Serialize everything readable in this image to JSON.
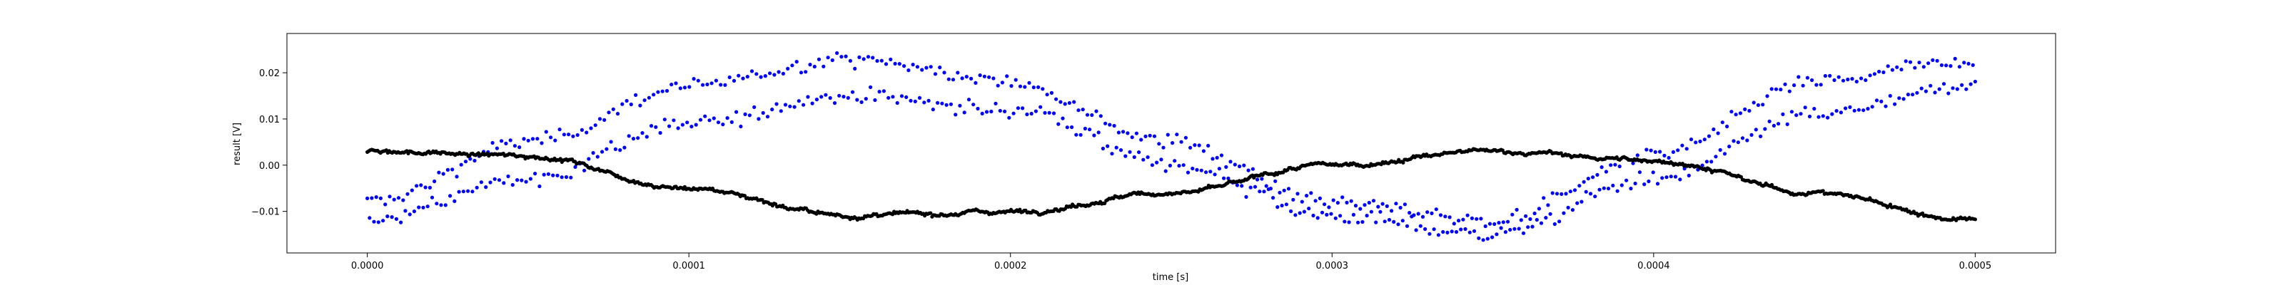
{
  "chart_data": {
    "type": "scatter",
    "title": "",
    "xlabel": "time [s]",
    "ylabel": "result [V]",
    "xlim": [
      -2.5e-05,
      0.000525
    ],
    "ylim": [
      -0.019,
      0.0285
    ],
    "xticks": [
      0.0,
      0.0001,
      0.0002,
      0.0003,
      0.0004,
      0.0005
    ],
    "xtick_labels": [
      "0.0000",
      "0.0001",
      "0.0002",
      "0.0003",
      "0.0004",
      "0.0005"
    ],
    "yticks": [
      -0.01,
      0.0,
      0.01,
      0.02
    ],
    "ytick_labels": [
      "−0.01",
      "0.00",
      "0.01",
      "0.02"
    ],
    "grid": false,
    "legend": "none",
    "series": [
      {
        "color": "#0000ff",
        "marker": "dot",
        "description": "noisy sinusoid, two interleaved branches",
        "x": [
          0.0,
          5e-05,
          0.0001,
          0.00015,
          0.0002,
          0.00025,
          0.0003,
          0.00035,
          0.0004,
          0.00045,
          0.0005
        ],
        "y_upper_branch": [
          -0.008,
          0.005,
          0.017,
          0.023,
          0.018,
          0.005,
          -0.008,
          -0.012,
          0.002,
          0.018,
          0.023
        ],
        "y_lower_branch": [
          -0.012,
          -0.003,
          0.009,
          0.015,
          0.012,
          0.0,
          -0.011,
          -0.015,
          -0.003,
          0.011,
          0.017
        ]
      },
      {
        "color": "#000000",
        "marker": "dot",
        "description": "dense slow signal",
        "x": [
          0.0,
          5e-05,
          0.0001,
          0.00015,
          0.0002,
          0.00025,
          0.0003,
          0.00035,
          0.0004,
          0.00045,
          0.0005
        ],
        "y": [
          0.003,
          0.002,
          -0.005,
          -0.011,
          -0.01,
          -0.006,
          0.0,
          0.003,
          0.001,
          -0.006,
          -0.012
        ]
      }
    ]
  }
}
